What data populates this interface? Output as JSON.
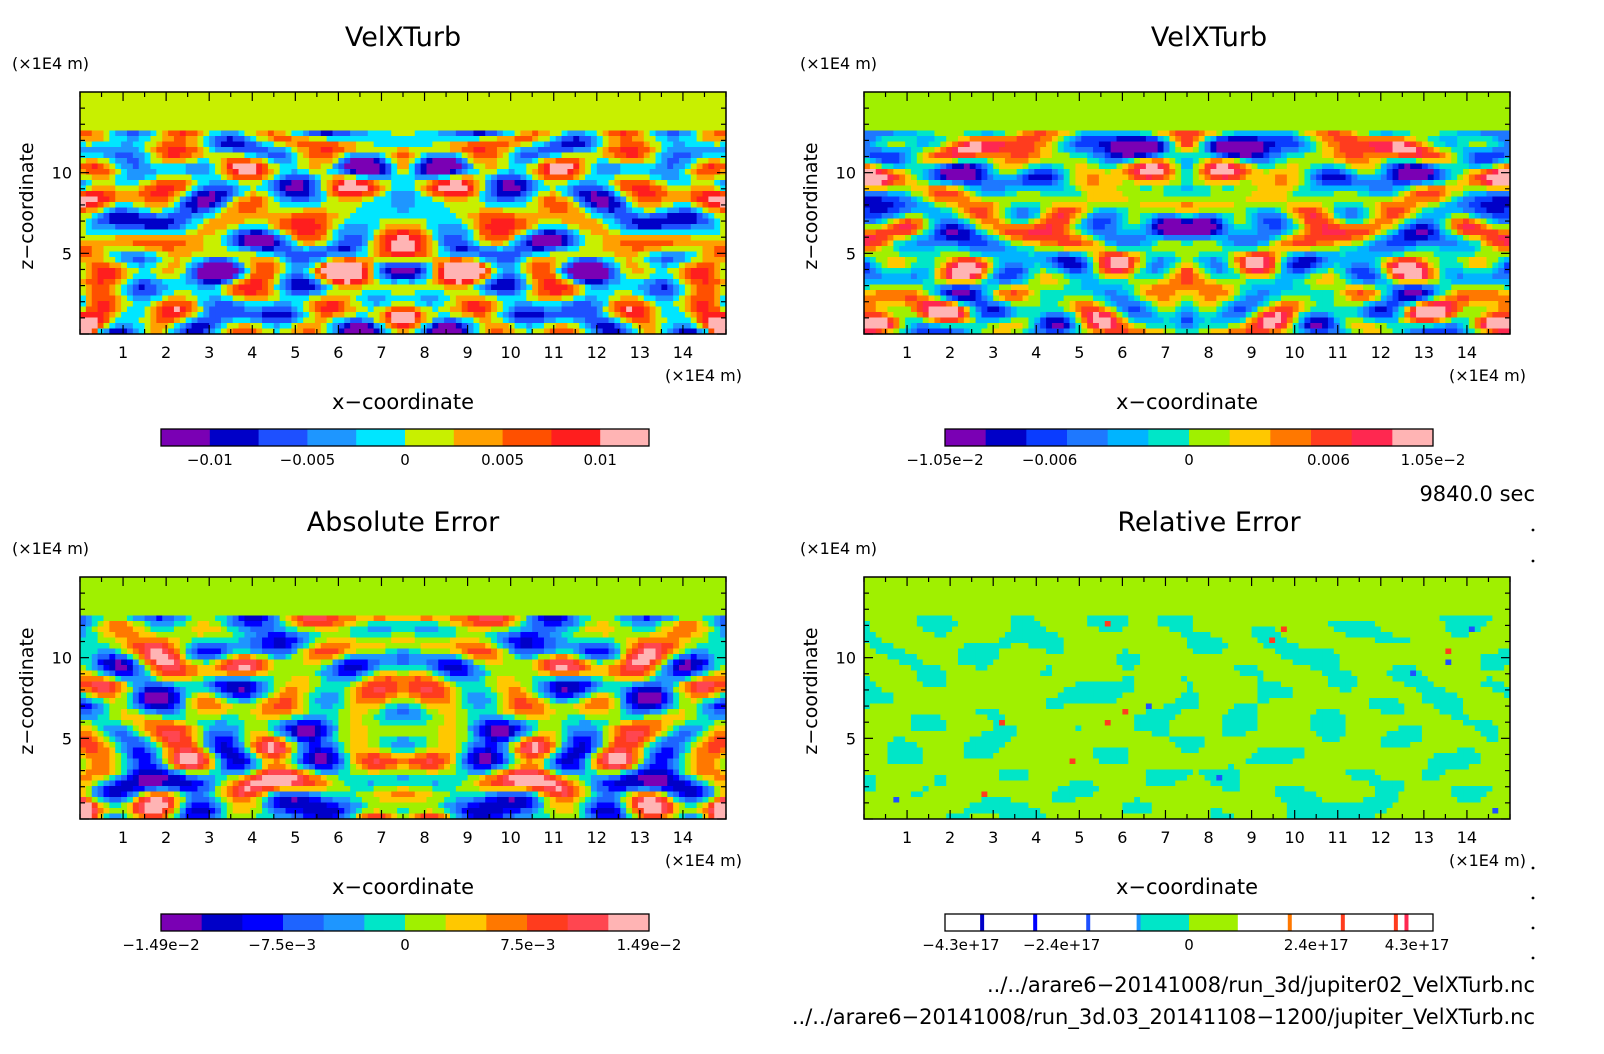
{
  "panels": [
    {
      "id": "top-left",
      "title": "VelXTurb",
      "y_unit": "(×1E4 m)",
      "x_unit": "(×1E4 m)",
      "xlabel": "x−coordinate",
      "ylabel": "z−coordinate",
      "colorbar": {
        "colors": [
          "#7a00b4",
          "#0000c8",
          "#1e50ff",
          "#1e96ff",
          "#00e6ff",
          "#c8f000",
          "#ffa000",
          "#ff5000",
          "#ff1e1e",
          "#ffb4b4"
        ],
        "tick_labels": [
          "−0.01",
          "−0.005",
          "0",
          "0.005",
          "0.01"
        ],
        "tick_values": [
          -0.01,
          -0.005,
          0,
          0.005,
          0.01
        ],
        "range": [
          -0.0125,
          0.0125
        ]
      }
    },
    {
      "id": "top-right",
      "title": "VelXTurb",
      "y_unit": "(×1E4 m)",
      "x_unit": "(×1E4 m)",
      "xlabel": "x−coordinate",
      "ylabel": "z−coordinate",
      "colorbar": {
        "colors": [
          "#7a00b4",
          "#0000c8",
          "#0a3cff",
          "#1e78ff",
          "#00b4ff",
          "#00e6c8",
          "#a0f000",
          "#ffc800",
          "#ff7800",
          "#ff3c1e",
          "#ff2850",
          "#ffb4b4"
        ],
        "tick_labels": [
          "−1.05e−2",
          "−0.006",
          "0",
          "0.006",
          "1.05e−2"
        ],
        "tick_values": [
          -0.0105,
          -0.006,
          0,
          0.006,
          0.0105
        ],
        "range": [
          -0.0105,
          0.0105
        ]
      }
    },
    {
      "id": "bottom-left",
      "title": "Absolute Error",
      "y_unit": "(×1E4 m)",
      "x_unit": "(×1E4 m)",
      "xlabel": "x−coordinate",
      "ylabel": "z−coordinate",
      "colorbar": {
        "colors": [
          "#7a00b4",
          "#0000c8",
          "#0000ff",
          "#1e64ff",
          "#1e96ff",
          "#00e6c8",
          "#a0f000",
          "#ffc800",
          "#ff7800",
          "#ff3c1e",
          "#ff4650",
          "#ffb4b4"
        ],
        "tick_labels": [
          "−1.49e−2",
          "−7.5e−3",
          "0",
          "7.5e−3",
          "1.49e−2"
        ],
        "tick_values": [
          -0.0149,
          -0.0075,
          0,
          0.0075,
          0.0149
        ],
        "range": [
          -0.0149,
          0.0149
        ]
      }
    },
    {
      "id": "bottom-right",
      "title": "Relative Error",
      "y_unit": "(×1E4 m)",
      "x_unit": "(×1E4 m)",
      "xlabel": "x−coordinate",
      "ylabel": "z−coordinate",
      "colorbar": {
        "colors": [
          "#ffffff",
          "#ffffff",
          "#ffffff",
          "#ffffff",
          "#00e6c8",
          "#a0f000",
          "#ffffff",
          "#ffffff",
          "#ffffff",
          "#ffffff"
        ],
        "lines": [
          {
            "value": -3.9e+17,
            "color": "#0000c8"
          },
          {
            "value": -2.9e+17,
            "color": "#0000ff"
          },
          {
            "value": -1.9e+17,
            "color": "#1e50ff"
          },
          {
            "value": -9.5e+16,
            "color": "#1e96ff"
          },
          {
            "value": 1.9e+17,
            "color": "#ff7800"
          },
          {
            "value": 2.9e+17,
            "color": "#ff3c1e"
          },
          {
            "value": 3.9e+17,
            "color": "#ff3c1e"
          },
          {
            "value": 4.1e+17,
            "color": "#ff2850"
          }
        ],
        "tick_labels": [
          "−4.3e+17",
          "−2.4e+17",
          "0",
          "2.4e+17",
          "4.3e+17"
        ],
        "tick_values": [
          -4.3e+17,
          -2.4e+17,
          0,
          2.4e+17,
          4.3e+17
        ],
        "range": [
          -4.6e+17,
          4.6e+17
        ]
      }
    }
  ],
  "time_label": "9840.0 sec",
  "file_paths": [
    "../../arare6−20141008/run_3d/jupiter02_VelXTurb.nc",
    "../../arare6−20141008/run_3d.03_20141108−1200/jupiter_VelXTurb.nc"
  ],
  "chart_data": [
    {
      "type": "heatmap",
      "title": "VelXTurb",
      "xlabel": "x−coordinate",
      "ylabel": "z−coordinate",
      "x_unit": "(×1E4 m)",
      "y_unit": "(×1E4 m)",
      "xlim": [
        0,
        15
      ],
      "ylim": [
        0,
        15
      ],
      "x_ticks": [
        1,
        2,
        3,
        4,
        5,
        6,
        7,
        8,
        9,
        10,
        11,
        12,
        13,
        14
      ],
      "y_ticks": [
        5,
        10
      ],
      "legend_ticks": [
        "−0.01",
        "−0.005",
        "0",
        "0.005",
        "0.01"
      ],
      "value_range": [
        -0.0125,
        0.0125
      ]
    },
    {
      "type": "heatmap",
      "title": "VelXTurb",
      "xlabel": "x−coordinate",
      "ylabel": "z−coordinate",
      "x_unit": "(×1E4 m)",
      "y_unit": "(×1E4 m)",
      "xlim": [
        0,
        15
      ],
      "ylim": [
        0,
        15
      ],
      "x_ticks": [
        1,
        2,
        3,
        4,
        5,
        6,
        7,
        8,
        9,
        10,
        11,
        12,
        13,
        14
      ],
      "y_ticks": [
        5,
        10
      ],
      "legend_ticks": [
        "−1.05e−2",
        "−0.006",
        "0",
        "0.006",
        "1.05e−2"
      ],
      "value_range": [
        -0.0105,
        0.0105
      ]
    },
    {
      "type": "heatmap",
      "title": "Absolute Error",
      "xlabel": "x−coordinate",
      "ylabel": "z−coordinate",
      "x_unit": "(×1E4 m)",
      "y_unit": "(×1E4 m)",
      "xlim": [
        0,
        15
      ],
      "ylim": [
        0,
        15
      ],
      "x_ticks": [
        1,
        2,
        3,
        4,
        5,
        6,
        7,
        8,
        9,
        10,
        11,
        12,
        13,
        14
      ],
      "y_ticks": [
        5,
        10
      ],
      "legend_ticks": [
        "−1.49e−2",
        "−7.5e−3",
        "0",
        "7.5e−3",
        "1.49e−2"
      ],
      "value_range": [
        -0.0149,
        0.0149
      ]
    },
    {
      "type": "heatmap",
      "title": "Relative Error",
      "xlabel": "x−coordinate",
      "ylabel": "z−coordinate",
      "x_unit": "(×1E4 m)",
      "y_unit": "(×1E4 m)",
      "xlim": [
        0,
        15
      ],
      "ylim": [
        0,
        15
      ],
      "x_ticks": [
        1,
        2,
        3,
        4,
        5,
        6,
        7,
        8,
        9,
        10,
        11,
        12,
        13,
        14
      ],
      "y_ticks": [
        5,
        10
      ],
      "legend_ticks": [
        "−4.3e+17",
        "−2.4e+17",
        "0",
        "2.4e+17",
        "4.3e+17"
      ],
      "value_range": [
        -4.6e+17,
        4.6e+17
      ]
    }
  ]
}
